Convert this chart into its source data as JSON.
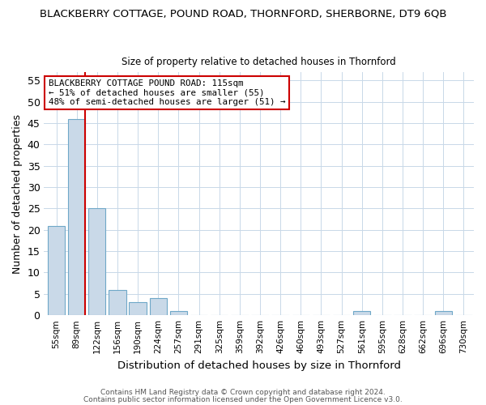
{
  "title": "BLACKBERRY COTTAGE, POUND ROAD, THORNFORD, SHERBORNE, DT9 6QB",
  "subtitle": "Size of property relative to detached houses in Thornford",
  "xlabel": "Distribution of detached houses by size in Thornford",
  "ylabel": "Number of detached properties",
  "bin_labels": [
    "55sqm",
    "89sqm",
    "122sqm",
    "156sqm",
    "190sqm",
    "224sqm",
    "257sqm",
    "291sqm",
    "325sqm",
    "359sqm",
    "392sqm",
    "426sqm",
    "460sqm",
    "493sqm",
    "527sqm",
    "561sqm",
    "595sqm",
    "628sqm",
    "662sqm",
    "696sqm",
    "730sqm"
  ],
  "bar_heights": [
    21,
    46,
    25,
    6,
    3,
    4,
    1,
    0,
    0,
    0,
    0,
    0,
    0,
    0,
    0,
    1,
    0,
    0,
    0,
    1,
    0
  ],
  "bar_color": "#c9d9e8",
  "bar_edgecolor": "#6fa8c8",
  "property_line_color": "#cc0000",
  "ylim": [
    0,
    57
  ],
  "yticks": [
    0,
    5,
    10,
    15,
    20,
    25,
    30,
    35,
    40,
    45,
    50,
    55
  ],
  "annotation_title": "BLACKBERRY COTTAGE POUND ROAD: 115sqm",
  "annotation_line1": "← 51% of detached houses are smaller (55)",
  "annotation_line2": "48% of semi-detached houses are larger (51) →",
  "annotation_box_color": "#ffffff",
  "annotation_box_edgecolor": "#cc0000",
  "footer1": "Contains HM Land Registry data © Crown copyright and database right 2024.",
  "footer2": "Contains public sector information licensed under the Open Government Licence v3.0.",
  "background_color": "#ffffff",
  "grid_color": "#c8d8e8"
}
